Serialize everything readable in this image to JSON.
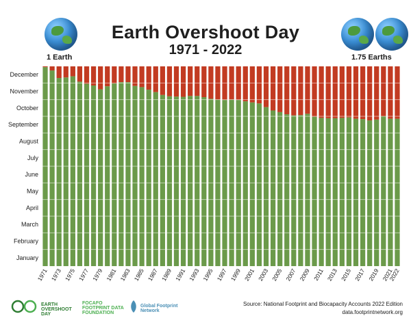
{
  "header": {
    "title": "Earth Overshoot Day",
    "subtitle": "1971 - 2022",
    "left_globe_label": "1 Earth",
    "right_globe_label": "1.75 Earths"
  },
  "footer": {
    "source": "Source: National Footprint and Biocapacity Accounts 2022 Edition",
    "url": "data.footprintnetwork.org",
    "logos": [
      "EARTH OVERSHOOT DAY",
      "FOCAFO FOOTPRINT DATA FOUNDATION",
      "Global Footprint Network"
    ]
  },
  "colors": {
    "green": "#6b9a4a",
    "red": "#c23b22",
    "gridline": "#ffffff"
  },
  "chart_data": {
    "type": "bar",
    "stacked": true,
    "title": "Earth Overshoot Day",
    "subtitle": "1971 - 2022",
    "y_axis_months": [
      "January",
      "February",
      "March",
      "April",
      "May",
      "June",
      "July",
      "August",
      "September",
      "October",
      "November",
      "December"
    ],
    "x_tick_labels": [
      "1971",
      "1973",
      "1975",
      "1977",
      "1979",
      "1981",
      "1983",
      "1985",
      "1987",
      "1989",
      "1991",
      "1993",
      "1995",
      "1997",
      "1999",
      "2001",
      "2003",
      "2005",
      "2007",
      "2009",
      "2011",
      "2013",
      "2015",
      "2017",
      "2019",
      "2021",
      "2022"
    ],
    "categories": [
      1971,
      1972,
      1973,
      1974,
      1975,
      1976,
      1977,
      1978,
      1979,
      1980,
      1981,
      1982,
      1983,
      1984,
      1985,
      1986,
      1987,
      1988,
      1989,
      1990,
      1991,
      1992,
      1993,
      1994,
      1995,
      1996,
      1997,
      1998,
      1999,
      2000,
      2001,
      2002,
      2003,
      2004,
      2005,
      2006,
      2007,
      2008,
      2009,
      2010,
      2011,
      2012,
      2013,
      2014,
      2015,
      2016,
      2017,
      2018,
      2019,
      2020,
      2021,
      2022
    ],
    "series": [
      {
        "color": "green",
        "values_month_fraction": [
          11.95,
          11.75,
          11.3,
          11.33,
          11.4,
          11.08,
          10.95,
          10.85,
          10.62,
          10.8,
          10.97,
          11.05,
          11.05,
          10.82,
          10.75,
          10.6,
          10.45,
          10.28,
          10.2,
          10.18,
          10.17,
          10.22,
          10.22,
          10.15,
          10.05,
          10.0,
          9.98,
          10.0,
          9.98,
          9.9,
          9.83,
          9.77,
          9.55,
          9.35,
          9.25,
          9.12,
          9.05,
          9.07,
          9.15,
          8.97,
          8.9,
          8.88,
          8.88,
          8.9,
          8.93,
          8.85,
          8.83,
          8.75,
          8.8,
          9.0,
          8.85,
          8.85
        ]
      },
      {
        "color": "red",
        "fill": "remainder"
      }
    ],
    "ylim": [
      0,
      12
    ],
    "grid": true
  }
}
